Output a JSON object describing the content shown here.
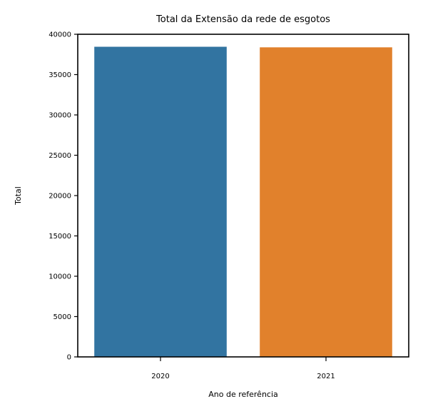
{
  "chart_data": {
    "type": "bar",
    "title": "Total da Extensão da rede de esgotos",
    "xlabel": "Ano de referência",
    "ylabel": "Total",
    "categories": [
      "2020",
      "2021"
    ],
    "values": [
      38450,
      38380
    ],
    "bar_colors": [
      "#3274a1",
      "#e1812c"
    ],
    "ylim": [
      0,
      40000
    ],
    "yticks": [
      "0",
      "5000",
      "10000",
      "15000",
      "20000",
      "25000",
      "30000",
      "35000",
      "40000"
    ],
    "grid": false,
    "legend": "none"
  }
}
